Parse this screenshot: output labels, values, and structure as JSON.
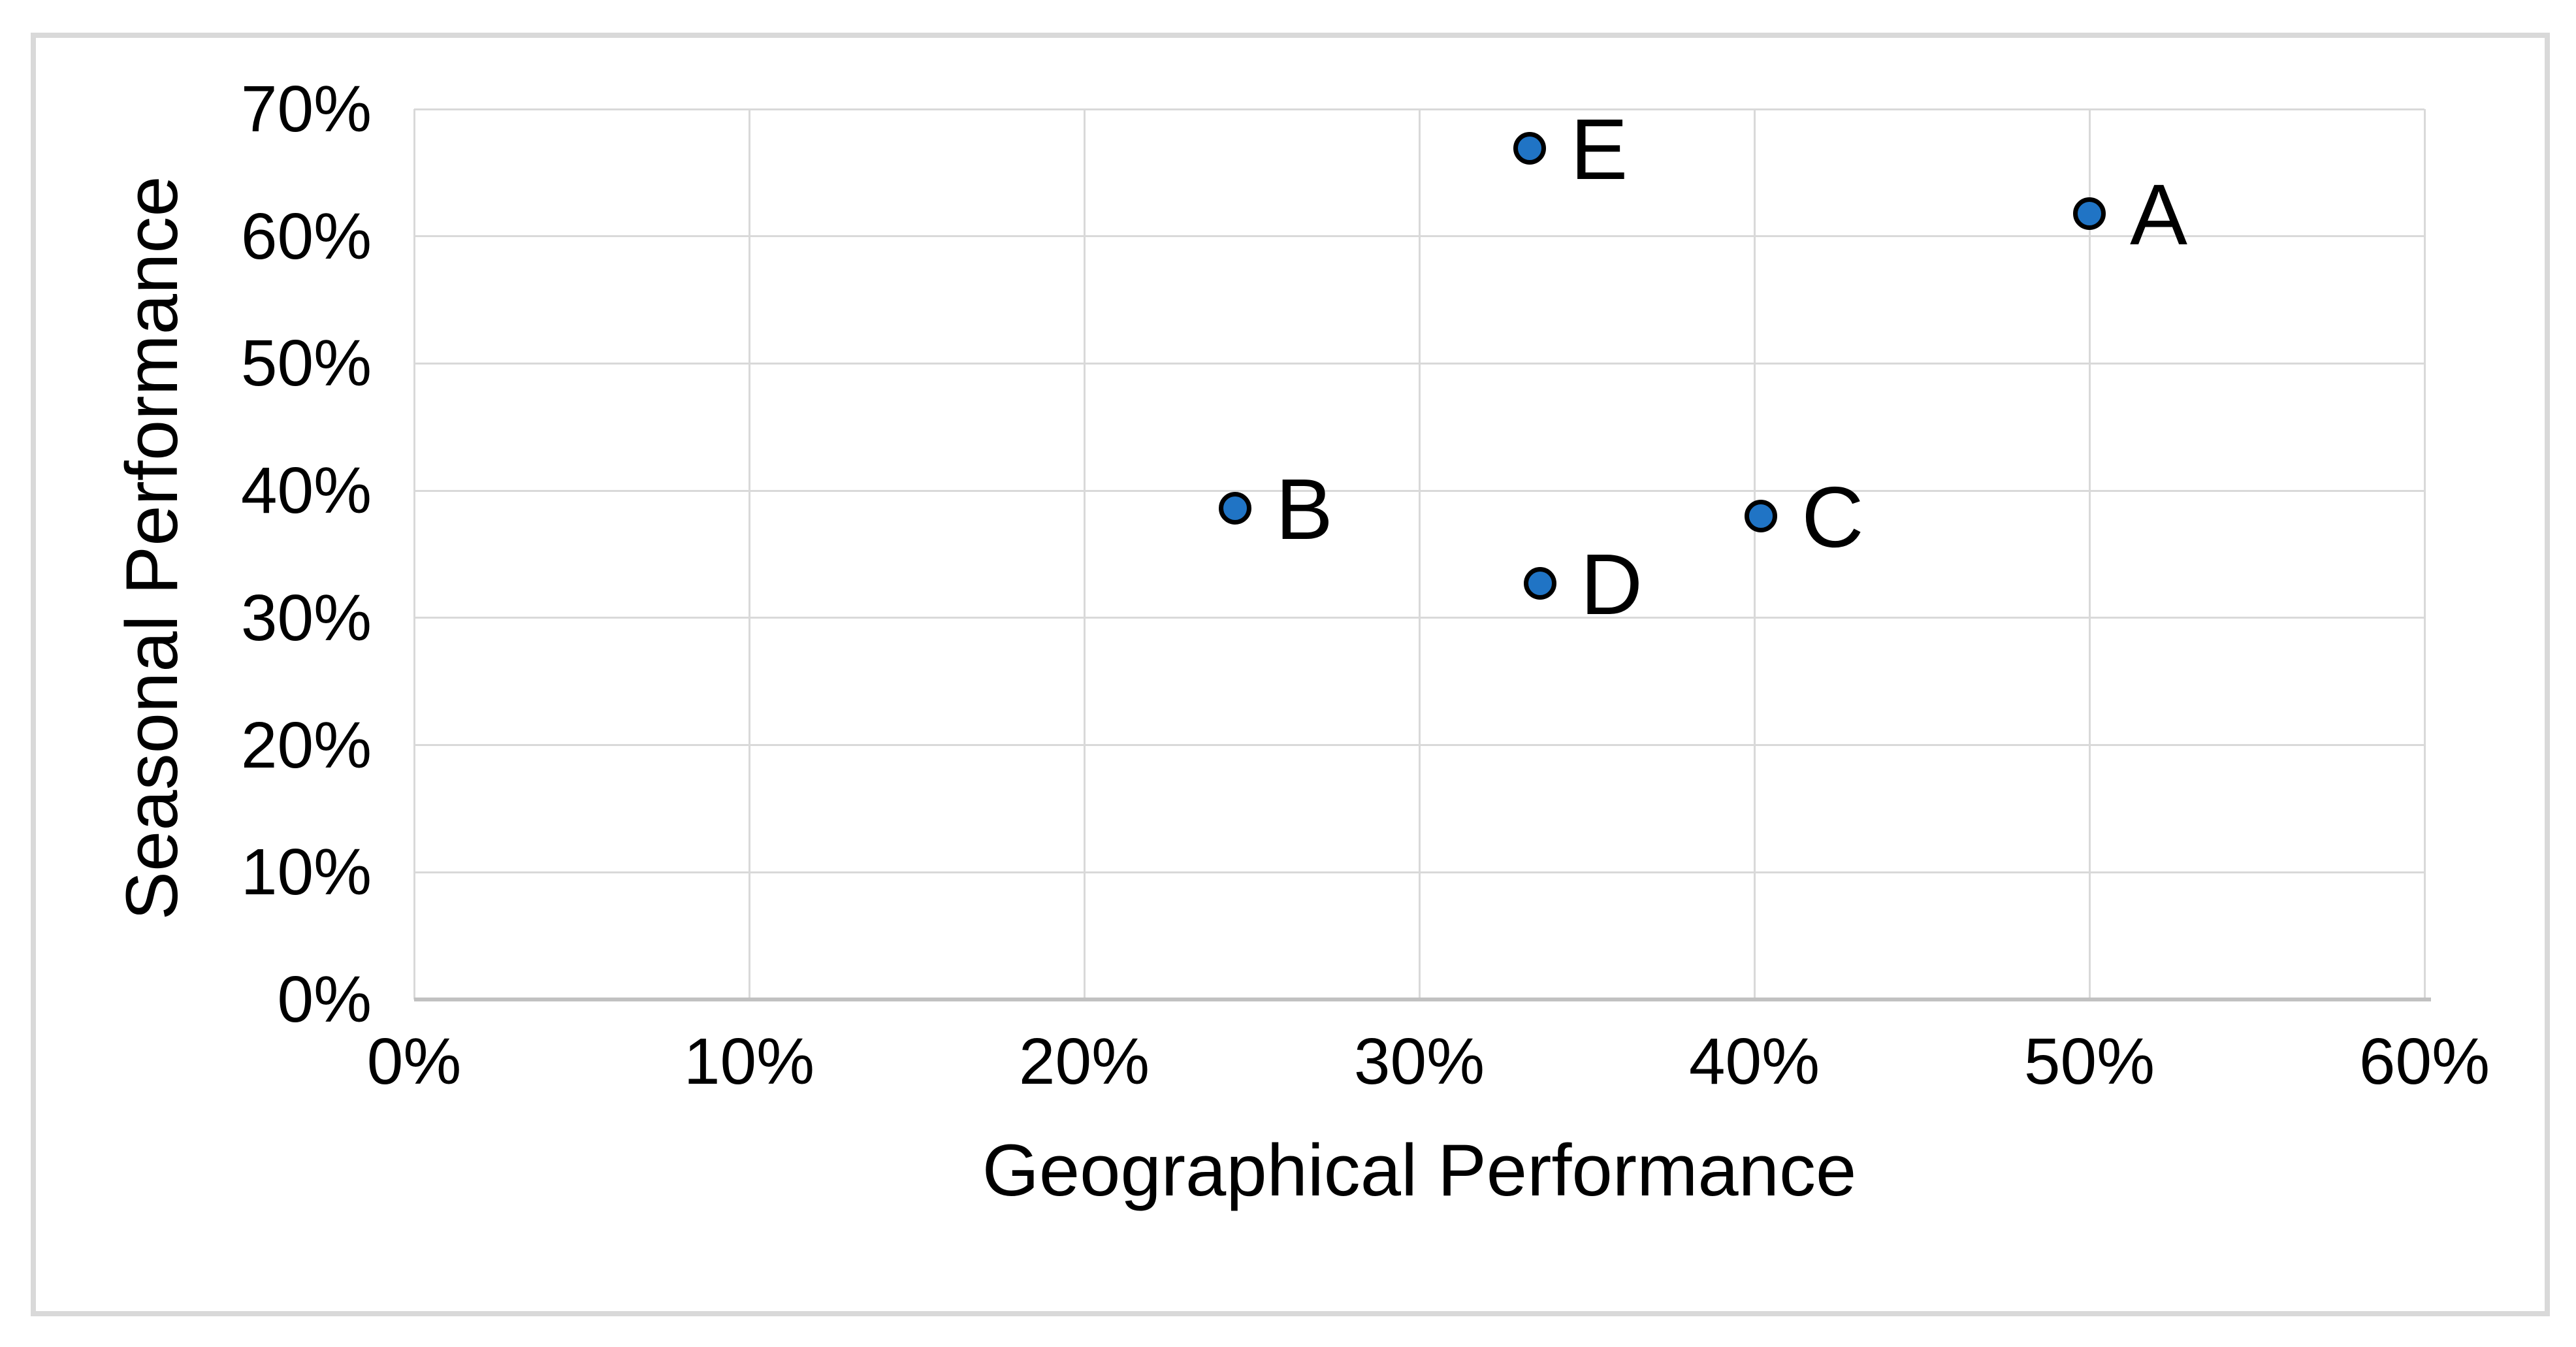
{
  "chart_data": {
    "type": "scatter",
    "title": "",
    "xlabel": "Geographical Performance",
    "ylabel": "Seasonal Performance",
    "xlim": [
      0,
      60
    ],
    "ylim": [
      0,
      70
    ],
    "x_tick_step": 10,
    "y_tick_step": 10,
    "x_tick_labels": [
      "0%",
      "10%",
      "20%",
      "30%",
      "40%",
      "50%",
      "60%"
    ],
    "y_tick_labels": [
      "0%",
      "10%",
      "20%",
      "30%",
      "40%",
      "50%",
      "60%",
      "70%"
    ],
    "tick_suffix": "%",
    "grid": true,
    "legend": "none",
    "points": [
      {
        "label": "A",
        "x": 50.0,
        "y": 61.8
      },
      {
        "label": "B",
        "x": 24.5,
        "y": 38.6
      },
      {
        "label": "C",
        "x": 40.2,
        "y": 38.0
      },
      {
        "label": "D",
        "x": 33.6,
        "y": 32.7
      },
      {
        "label": "E",
        "x": 33.3,
        "y": 66.9
      }
    ],
    "colors": {
      "marker_fill": "#2074C5",
      "marker_outline": "#000000",
      "gridline": "#D9D9D9",
      "axis_line": "#C1C1C1",
      "chart_border": "#D9D9D9",
      "text": "#000000",
      "background": "#FFFFFF"
    }
  }
}
